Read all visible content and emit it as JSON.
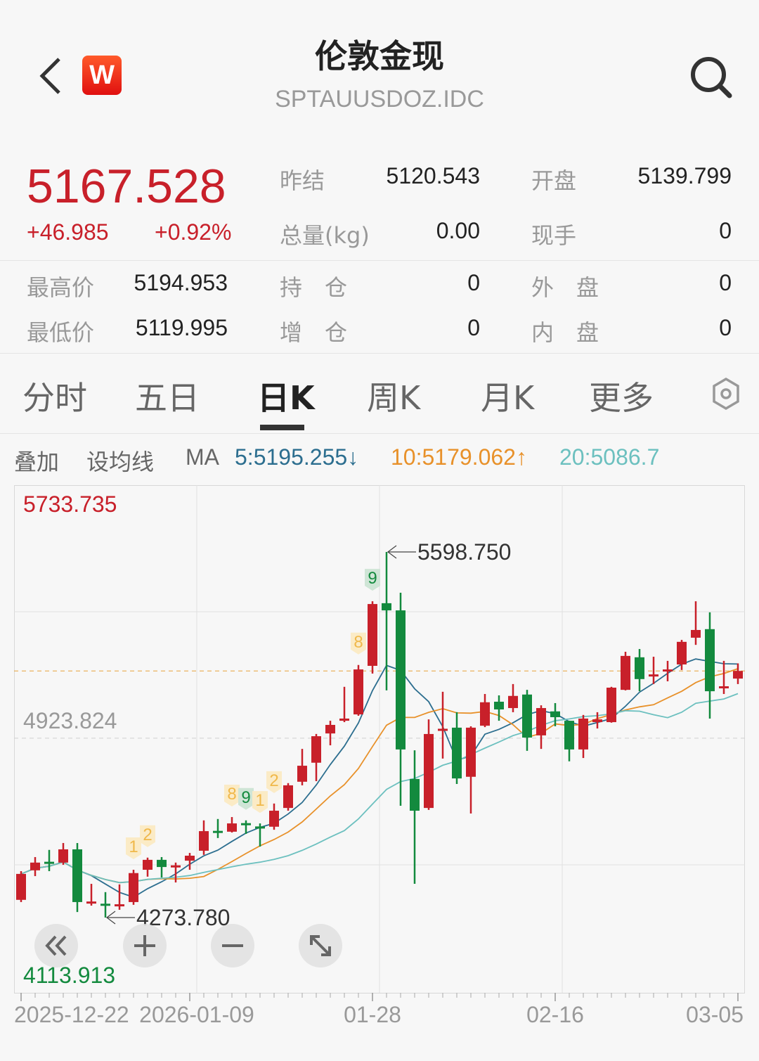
{
  "header": {
    "title": "伦敦金现",
    "code": "SPTAUUSDOZ.IDC",
    "logo_text": "W",
    "back_icon": "chevron-left-icon",
    "search_icon": "search-icon"
  },
  "quote": {
    "price": "5167.528",
    "change": "+46.985",
    "change_pct": "+0.92%",
    "up_color": "#c8202a",
    "stats": [
      {
        "label": "昨结",
        "value": "5120.543"
      },
      {
        "label": "开盘",
        "value": "5139.799"
      },
      {
        "label": "总量(kg)",
        "value": "0.00"
      },
      {
        "label": "现手",
        "value": "0"
      },
      {
        "label": "最高价",
        "value": "5194.953"
      },
      {
        "label": "持　仓",
        "value": "0"
      },
      {
        "label": "外　盘",
        "value": "0"
      },
      {
        "label": "最低价",
        "value": "5119.995"
      },
      {
        "label": "增　仓",
        "value": "0"
      },
      {
        "label": "内　盘",
        "value": "0"
      }
    ]
  },
  "tabs": [
    {
      "label": "分时"
    },
    {
      "label": "五日"
    },
    {
      "label": "日K",
      "active": true
    },
    {
      "label": "周K"
    },
    {
      "label": "月K"
    },
    {
      "label": "更多"
    }
  ],
  "settings_icon": "hexagon-settings-icon",
  "indicator_bar": {
    "overlay": "叠加",
    "set_ma": "设均线",
    "ma": "MA",
    "ma5": "5:5195.255↓",
    "ma10": "10:5179.062↑",
    "ma20": "20:5086.7"
  },
  "controls": [
    {
      "icon": "double-chevron-left-icon"
    },
    {
      "icon": "zoom-in-icon"
    },
    {
      "icon": "zoom-out-icon"
    },
    {
      "icon": "fullscreen-icon"
    }
  ],
  "chart_data": {
    "type": "candlestick",
    "ylim": [
      4113.913,
      5733.735
    ],
    "y_labels": {
      "max": "5733.735",
      "mid": "4923.824",
      "min": "4113.913"
    },
    "x_labels": [
      {
        "text": "2025-12-22",
        "index": 0
      },
      {
        "text": "2026-01-09",
        "index": 12
      },
      {
        "text": "01-28",
        "index": 25
      },
      {
        "text": "02-16",
        "index": 38
      },
      {
        "text": "03-05",
        "index": 51
      }
    ],
    "current_price": 5167.528,
    "high_marker": {
      "text": "5598.750",
      "index": 26
    },
    "low_marker": {
      "text": "4273.780",
      "index": 6
    },
    "colors": {
      "up": "#c8202a",
      "down": "#138a3e",
      "ma5": "#2c6e8f",
      "ma10": "#e8912a",
      "ma20": "#6cc0bf",
      "current": "#e8a23a"
    },
    "ma_periods": [
      5,
      10,
      20
    ],
    "td_markers": [
      {
        "index": 8,
        "text": "1",
        "type": "up"
      },
      {
        "index": 9,
        "text": "2",
        "type": "up"
      },
      {
        "index": 15,
        "text": "8",
        "type": "up"
      },
      {
        "index": 16,
        "text": "9",
        "type": "done"
      },
      {
        "index": 17,
        "text": "1",
        "type": "up"
      },
      {
        "index": 18,
        "text": "2",
        "type": "up"
      },
      {
        "index": 24,
        "text": "8",
        "type": "up"
      },
      {
        "index": 25,
        "text": "9",
        "type": "done"
      }
    ],
    "ohlc": [
      [
        4338,
        4442,
        4330,
        4432
      ],
      [
        4445,
        4493,
        4424,
        4473
      ],
      [
        4476,
        4519,
        4442,
        4474
      ],
      [
        4473,
        4544,
        4465,
        4521
      ],
      [
        4521,
        4544,
        4294,
        4330
      ],
      [
        4328,
        4396,
        4317,
        4332
      ],
      [
        4324,
        4366,
        4273.78,
        4320
      ],
      [
        4318,
        4394,
        4302,
        4322
      ],
      [
        4330,
        4447,
        4320,
        4435
      ],
      [
        4447,
        4491,
        4422,
        4483
      ],
      [
        4483,
        4493,
        4419,
        4457
      ],
      [
        4460,
        4473,
        4401,
        4463
      ],
      [
        4480,
        4508,
        4447,
        4498
      ],
      [
        4516,
        4626,
        4501,
        4587
      ],
      [
        4588,
        4631,
        4562,
        4586
      ],
      [
        4585,
        4638,
        4582,
        4615
      ],
      [
        4616,
        4626,
        4577,
        4614
      ],
      [
        4604,
        4615,
        4531,
        4602
      ],
      [
        4603,
        4687,
        4592,
        4661
      ],
      [
        4671,
        4761,
        4661,
        4753
      ],
      [
        4766,
        4885,
        4753,
        4824
      ],
      [
        4835,
        4939,
        4768,
        4931
      ],
      [
        4941,
        4987,
        4898,
        4972
      ],
      [
        4987,
        5110,
        4982,
        4995
      ],
      [
        5010,
        5189,
        5005,
        5173
      ],
      [
        5186,
        5420,
        5158,
        5410
      ],
      [
        5413,
        5598.75,
        5097,
        5387
      ],
      [
        5387,
        5451,
        4679,
        4883
      ],
      [
        4776,
        4880,
        4396,
        4661
      ],
      [
        4671,
        4992,
        4664,
        4939
      ],
      [
        4955,
        5092,
        4850,
        4958
      ],
      [
        4962,
        5018,
        4758,
        4778
      ],
      [
        4784,
        4967,
        4651,
        4962
      ],
      [
        4969,
        5084,
        4964,
        5054
      ],
      [
        5056,
        5079,
        4987,
        5028
      ],
      [
        5033,
        5120,
        5018,
        5077
      ],
      [
        5082,
        5099,
        4878,
        4926
      ],
      [
        4934,
        5043,
        4885,
        5033
      ],
      [
        5021,
        5051,
        4967,
        5000
      ],
      [
        4987,
        4987,
        4840,
        4883
      ],
      [
        4883,
        5008,
        4852,
        4995
      ],
      [
        4982,
        5018,
        4959,
        4992
      ],
      [
        4982,
        5110,
        4980,
        5107
      ],
      [
        5099,
        5237,
        5097,
        5222
      ],
      [
        5217,
        5247,
        5094,
        5138
      ],
      [
        5150,
        5219,
        5120,
        5155
      ],
      [
        5171,
        5204,
        5130,
        5173
      ],
      [
        5191,
        5280,
        5171,
        5273
      ],
      [
        5288,
        5420,
        5262,
        5316
      ],
      [
        5319,
        5380,
        4995,
        5094
      ],
      [
        5110,
        5204,
        5084,
        5112
      ],
      [
        5139.799,
        5194.953,
        5119.995,
        5167.528
      ]
    ]
  }
}
